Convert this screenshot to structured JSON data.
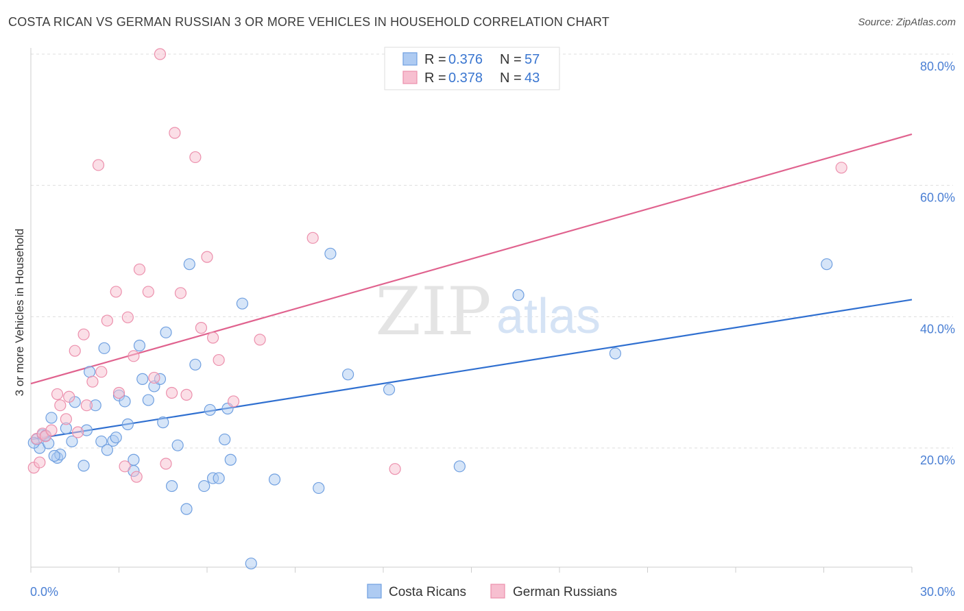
{
  "title": "COSTA RICAN VS GERMAN RUSSIAN 3 OR MORE VEHICLES IN HOUSEHOLD CORRELATION CHART",
  "source": "Source: ZipAtlas.com",
  "watermark": {
    "zip": "ZIP",
    "atlas": "atlas"
  },
  "colors": {
    "blue_fill": "#aecbf2",
    "blue_stroke": "#6f9fe0",
    "blue_line": "#2f6fd0",
    "pink_fill": "#f7bfd0",
    "pink_stroke": "#ec8fac",
    "pink_line": "#e0628e",
    "tick_label": "#4a7fd4",
    "grid": "#dddddd"
  },
  "legend": {
    "rows": [
      {
        "r_label": "R = ",
        "r_value": "0.376",
        "n_label": "N = ",
        "n_value": "57"
      },
      {
        "r_label": "R = ",
        "r_value": "0.378",
        "n_label": "N = ",
        "n_value": "43"
      }
    ]
  },
  "chart_data": {
    "type": "scatter",
    "ylabel": "3 or more Vehicles in Household",
    "xlim": [
      0,
      30
    ],
    "ylim": [
      0,
      82
    ],
    "x_ticks": [
      {
        "value": 0,
        "label": "0.0%"
      },
      {
        "value": 30,
        "label": "30.0%"
      }
    ],
    "y_ticks": [
      {
        "value": 20,
        "label": "20.0%"
      },
      {
        "value": 40,
        "label": "40.0%"
      },
      {
        "value": 60,
        "label": "60.0%"
      },
      {
        "value": 80,
        "label": "80.0%"
      }
    ],
    "series": [
      {
        "name": "Costa Ricans",
        "color": "blue",
        "trend": {
          "x": [
            0,
            30
          ],
          "y": [
            21.3,
            42.6
          ]
        },
        "points": [
          [
            0.2,
            21.3
          ],
          [
            0.3,
            20.0
          ],
          [
            0.4,
            22.0
          ],
          [
            0.6,
            20.7
          ],
          [
            0.7,
            24.6
          ],
          [
            0.9,
            18.5
          ],
          [
            1.0,
            19.0
          ],
          [
            1.2,
            23.0
          ],
          [
            1.4,
            21.0
          ],
          [
            1.5,
            27.0
          ],
          [
            1.8,
            17.3
          ],
          [
            1.9,
            22.7
          ],
          [
            2.0,
            31.6
          ],
          [
            2.2,
            26.5
          ],
          [
            2.4,
            21.0
          ],
          [
            2.5,
            35.2
          ],
          [
            2.6,
            19.7
          ],
          [
            2.8,
            21.1
          ],
          [
            2.9,
            21.6
          ],
          [
            3.0,
            28.0
          ],
          [
            3.2,
            27.1
          ],
          [
            3.3,
            23.6
          ],
          [
            3.5,
            18.2
          ],
          [
            3.5,
            16.5
          ],
          [
            3.7,
            35.6
          ],
          [
            3.8,
            30.5
          ],
          [
            4.0,
            27.3
          ],
          [
            4.2,
            29.4
          ],
          [
            4.4,
            30.5
          ],
          [
            4.5,
            23.9
          ],
          [
            4.6,
            37.6
          ],
          [
            4.8,
            14.2
          ],
          [
            5.0,
            20.4
          ],
          [
            5.3,
            10.7
          ],
          [
            5.4,
            48.0
          ],
          [
            5.6,
            32.7
          ],
          [
            5.9,
            14.2
          ],
          [
            6.1,
            25.8
          ],
          [
            6.2,
            15.4
          ],
          [
            6.4,
            15.4
          ],
          [
            6.6,
            21.3
          ],
          [
            6.8,
            18.2
          ],
          [
            6.7,
            26.0
          ],
          [
            7.2,
            42.0
          ],
          [
            7.5,
            2.4
          ],
          [
            8.3,
            15.2
          ],
          [
            9.8,
            13.9
          ],
          [
            10.2,
            49.6
          ],
          [
            10.8,
            31.2
          ],
          [
            12.2,
            28.9
          ],
          [
            14.6,
            17.2
          ],
          [
            16.6,
            43.3
          ],
          [
            19.9,
            34.4
          ],
          [
            27.1,
            48.0
          ],
          [
            0.1,
            20.8
          ],
          [
            0.5,
            21.9
          ],
          [
            0.8,
            18.8
          ]
        ]
      },
      {
        "name": "German Russians",
        "color": "pink",
        "trend": {
          "x": [
            0,
            30
          ],
          "y": [
            29.8,
            67.8
          ]
        },
        "points": [
          [
            0.1,
            17.0
          ],
          [
            0.2,
            21.4
          ],
          [
            0.4,
            22.2
          ],
          [
            0.5,
            21.8
          ],
          [
            0.7,
            22.7
          ],
          [
            0.9,
            28.2
          ],
          [
            1.0,
            26.5
          ],
          [
            1.2,
            24.4
          ],
          [
            1.3,
            27.8
          ],
          [
            1.5,
            34.8
          ],
          [
            1.6,
            22.4
          ],
          [
            1.8,
            37.3
          ],
          [
            1.9,
            26.5
          ],
          [
            2.1,
            30.1
          ],
          [
            2.3,
            63.1
          ],
          [
            2.4,
            31.6
          ],
          [
            2.6,
            39.4
          ],
          [
            2.9,
            43.8
          ],
          [
            3.0,
            28.4
          ],
          [
            3.2,
            17.2
          ],
          [
            3.3,
            39.9
          ],
          [
            3.5,
            34.0
          ],
          [
            3.6,
            15.6
          ],
          [
            3.7,
            47.2
          ],
          [
            4.0,
            43.8
          ],
          [
            4.2,
            30.7
          ],
          [
            4.4,
            80.0
          ],
          [
            4.6,
            17.6
          ],
          [
            4.8,
            28.4
          ],
          [
            4.9,
            68.0
          ],
          [
            5.1,
            43.6
          ],
          [
            5.3,
            28.1
          ],
          [
            5.6,
            64.3
          ],
          [
            5.8,
            38.3
          ],
          [
            6.0,
            49.1
          ],
          [
            6.2,
            36.8
          ],
          [
            6.4,
            33.4
          ],
          [
            6.9,
            27.1
          ],
          [
            7.8,
            36.5
          ],
          [
            9.6,
            52.0
          ],
          [
            12.4,
            16.8
          ],
          [
            27.6,
            62.7
          ],
          [
            0.3,
            17.8
          ]
        ]
      }
    ]
  }
}
